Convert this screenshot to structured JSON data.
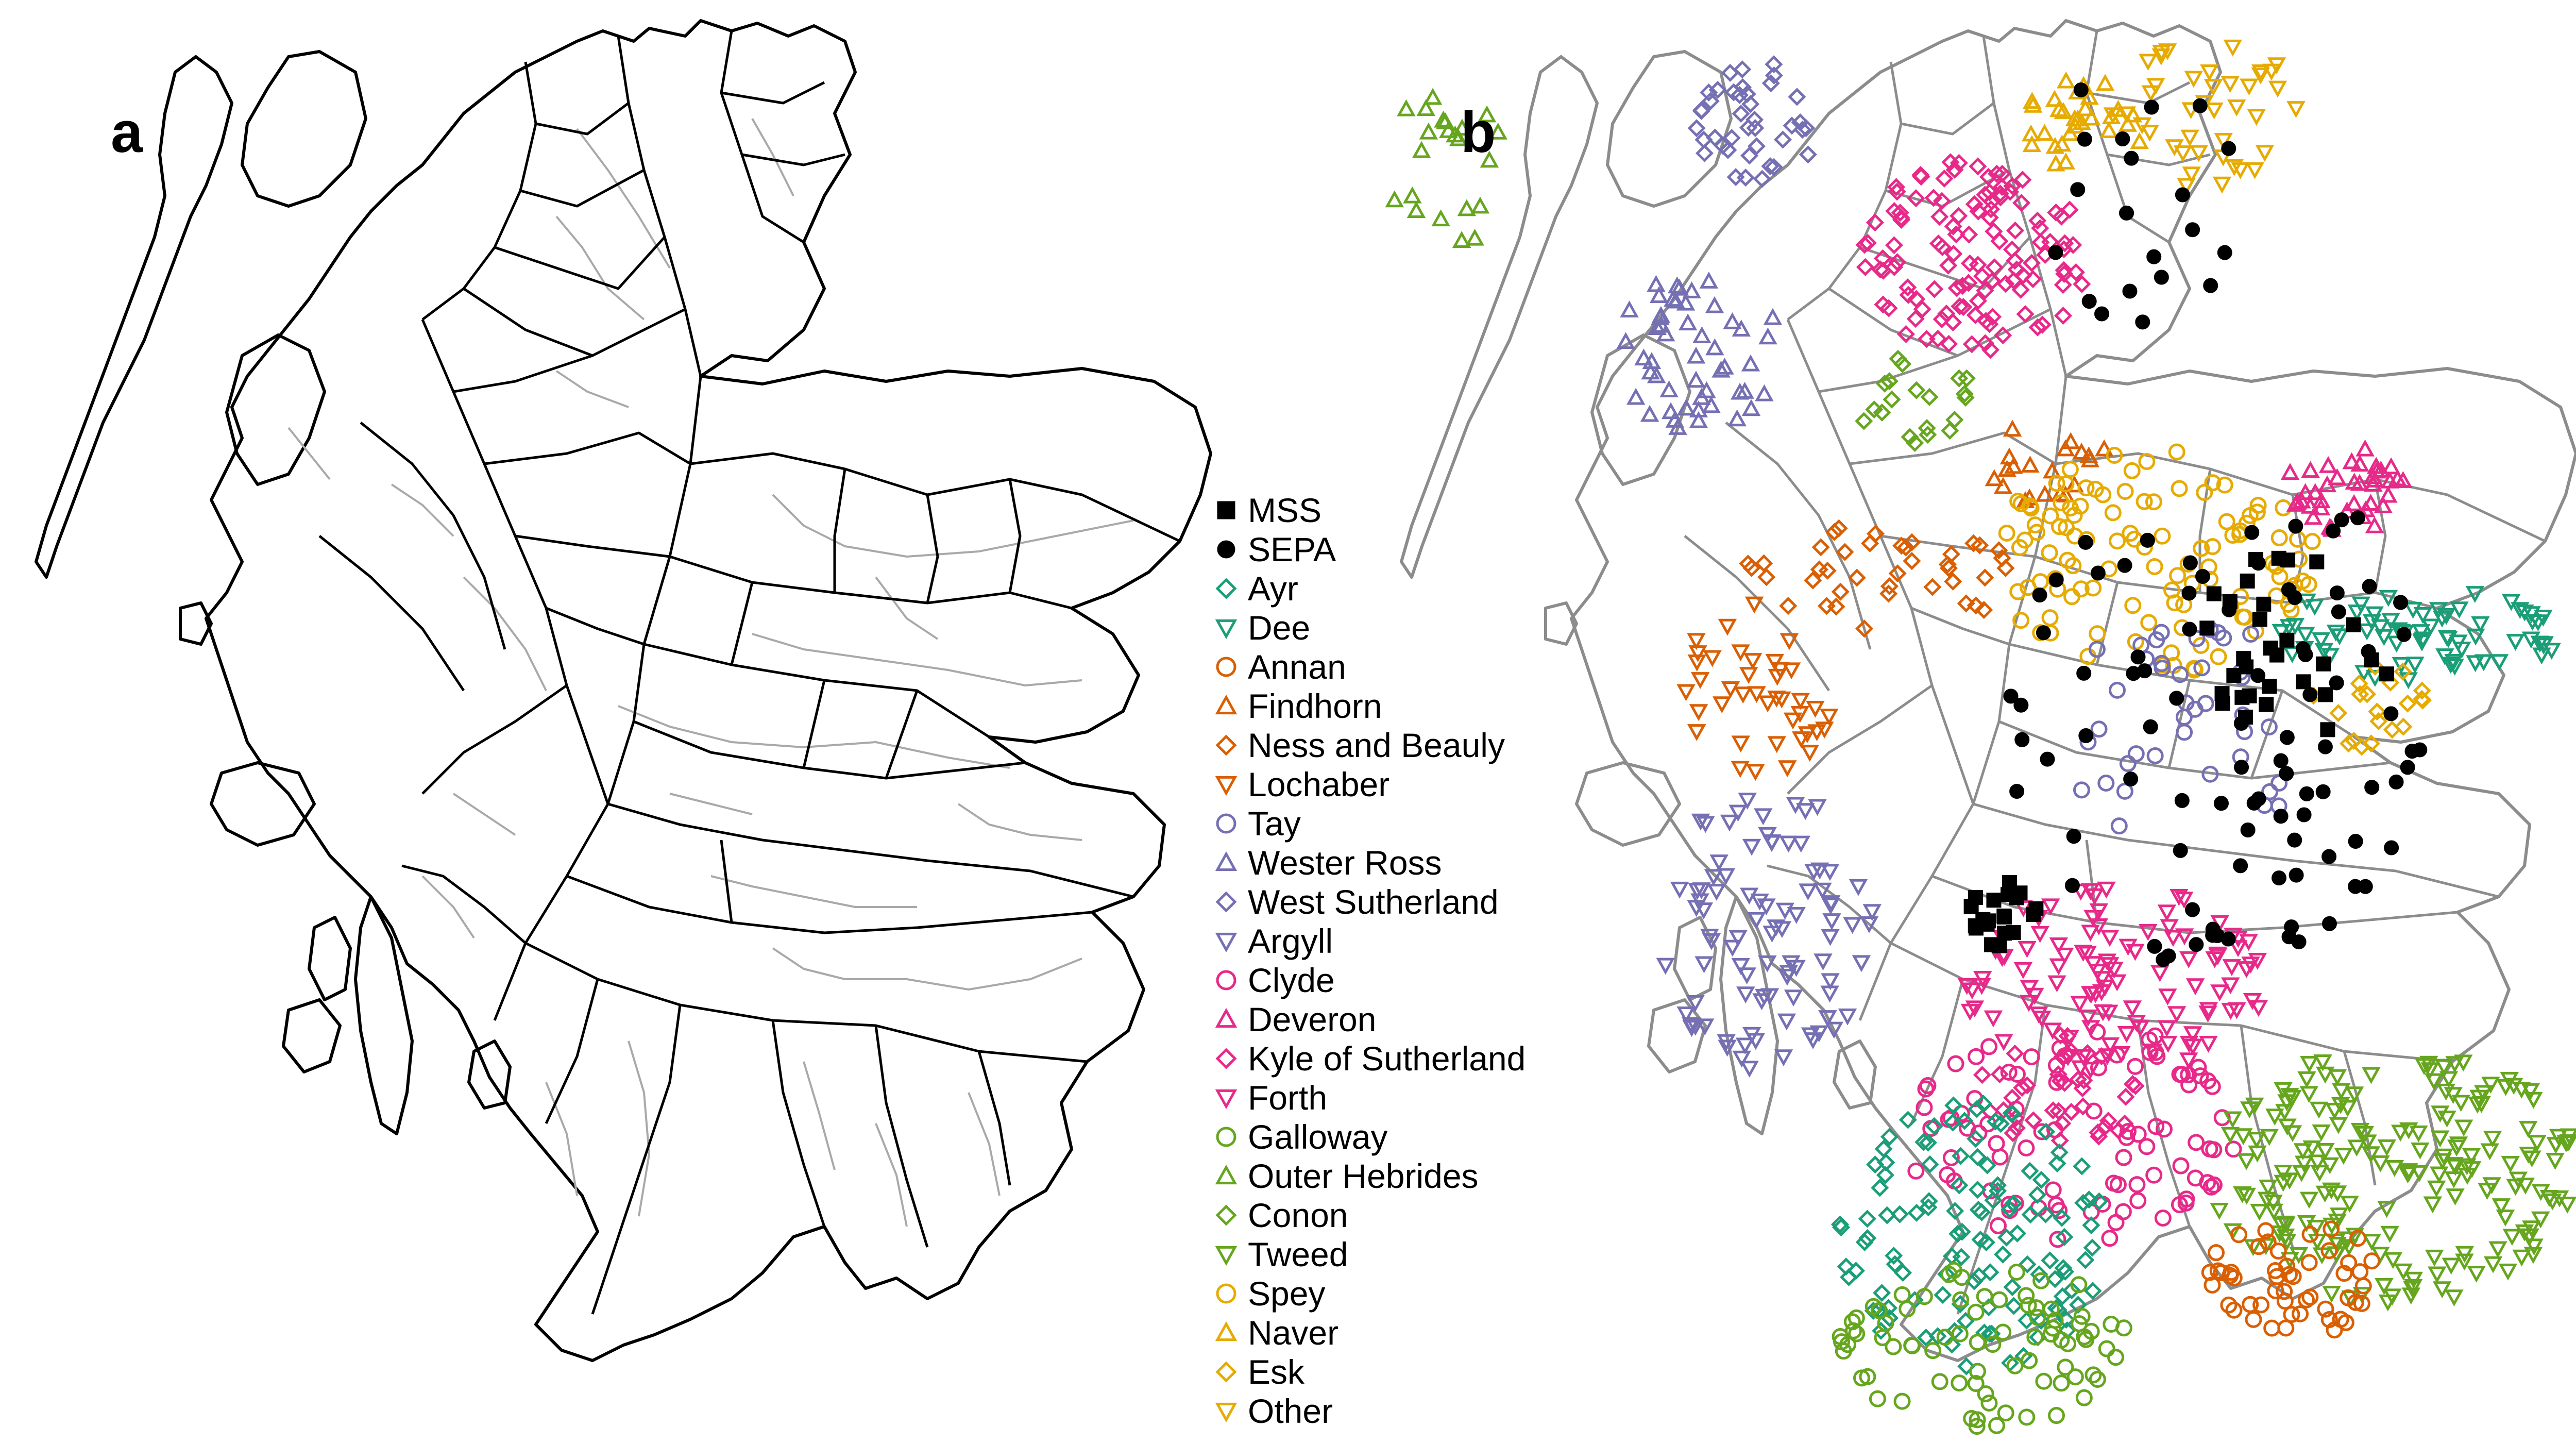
{
  "panels": {
    "a": {
      "label": "a"
    },
    "b": {
      "label": "b"
    }
  },
  "legend": [
    {
      "name": "MSS",
      "shape": "square-filled",
      "color": "#000000"
    },
    {
      "name": "SEPA",
      "shape": "circle-filled",
      "color": "#000000"
    },
    {
      "name": "Ayr",
      "shape": "diamond",
      "color": "#1b9e77"
    },
    {
      "name": "Dee",
      "shape": "triangle-down",
      "color": "#1b9e77"
    },
    {
      "name": "Annan",
      "shape": "circle",
      "color": "#d95f02"
    },
    {
      "name": "Findhorn",
      "shape": "triangle-up",
      "color": "#d95f02"
    },
    {
      "name": "Ness and Beauly",
      "shape": "diamond",
      "color": "#d95f02"
    },
    {
      "name": "Lochaber",
      "shape": "triangle-down",
      "color": "#d95f02"
    },
    {
      "name": "Tay",
      "shape": "circle",
      "color": "#7570b3"
    },
    {
      "name": "Wester Ross",
      "shape": "triangle-up",
      "color": "#7570b3"
    },
    {
      "name": "West Sutherland",
      "shape": "diamond",
      "color": "#7570b3"
    },
    {
      "name": "Argyll",
      "shape": "triangle-down",
      "color": "#7570b3"
    },
    {
      "name": "Clyde",
      "shape": "circle",
      "color": "#e7298a"
    },
    {
      "name": "Deveron",
      "shape": "triangle-up",
      "color": "#e7298a"
    },
    {
      "name": "Kyle of Sutherland",
      "shape": "diamond",
      "color": "#e7298a"
    },
    {
      "name": "Forth",
      "shape": "triangle-down",
      "color": "#e7298a"
    },
    {
      "name": "Galloway",
      "shape": "circle",
      "color": "#66a61e"
    },
    {
      "name": "Outer Hebrides",
      "shape": "triangle-up",
      "color": "#66a61e"
    },
    {
      "name": "Conon",
      "shape": "diamond",
      "color": "#66a61e"
    },
    {
      "name": "Tweed",
      "shape": "triangle-down",
      "color": "#66a61e"
    },
    {
      "name": "Spey",
      "shape": "circle",
      "color": "#e6ab02"
    },
    {
      "name": "Naver",
      "shape": "triangle-up",
      "color": "#e6ab02"
    },
    {
      "name": "Esk",
      "shape": "diamond",
      "color": "#e6ab02"
    },
    {
      "name": "Other",
      "shape": "triangle-down",
      "color": "#e6ab02"
    }
  ]
}
